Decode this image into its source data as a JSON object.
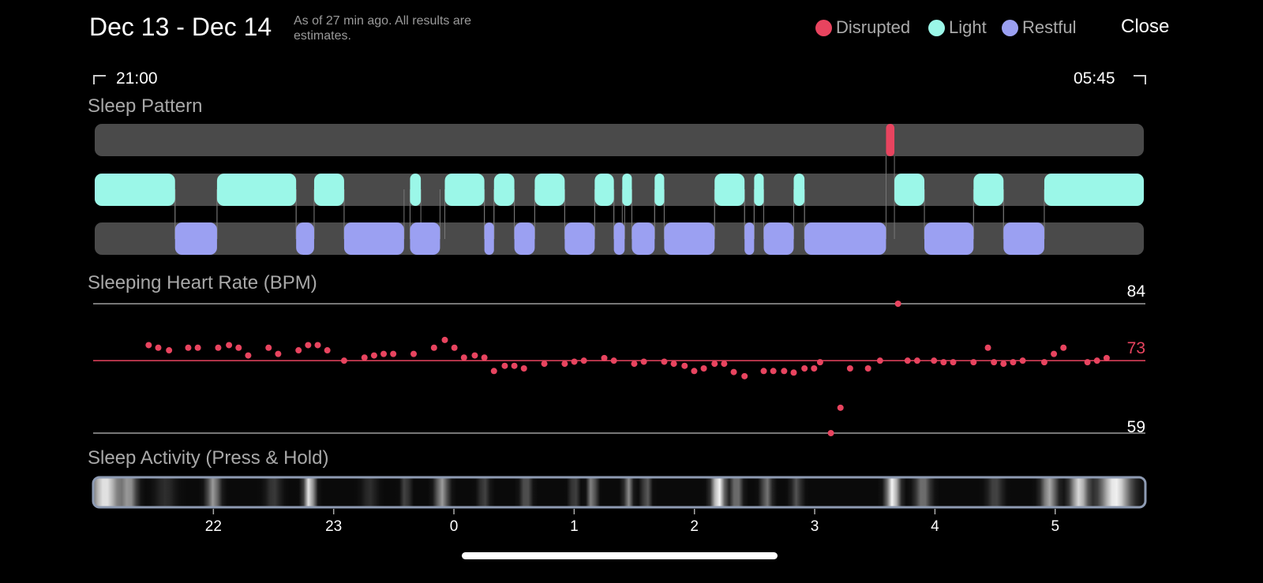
{
  "header": {
    "date_range": "Dec 13 - Dec 14",
    "note": "As of 27 min ago. All results are estimates.",
    "close_label": "Close"
  },
  "legend": [
    {
      "label": "Disrupted",
      "color": "#e8445f"
    },
    {
      "label": "Light",
      "color": "#9bf7e8"
    },
    {
      "label": "Restful",
      "color": "#9ba0f2"
    }
  ],
  "time_range": {
    "start": "21:00",
    "end": "05:45"
  },
  "sections": {
    "pattern_title": "Sleep Pattern",
    "hr_title": "Sleeping Heart Rate (BPM)",
    "activity_title": "Sleep Activity (Press & Hold)"
  },
  "sleep_pattern": {
    "start_hour": 21.0,
    "end_hour": 29.75,
    "disrupted": [
      [
        27.6,
        27.67
      ]
    ],
    "light": [
      [
        21.0,
        21.67
      ],
      [
        22.02,
        22.68
      ],
      [
        22.83,
        23.08
      ],
      [
        23.63,
        23.72
      ],
      [
        23.92,
        24.25
      ],
      [
        24.33,
        24.5
      ],
      [
        24.67,
        24.92
      ],
      [
        25.17,
        25.33
      ],
      [
        25.4,
        25.48
      ],
      [
        25.67,
        25.75
      ],
      [
        26.17,
        26.42
      ],
      [
        26.5,
        26.58
      ],
      [
        26.83,
        26.92
      ],
      [
        27.67,
        27.92
      ],
      [
        28.33,
        28.58
      ],
      [
        28.92,
        29.75
      ]
    ],
    "restful": [
      [
        21.67,
        22.02
      ],
      [
        22.68,
        22.83
      ],
      [
        23.08,
        23.58
      ],
      [
        23.63,
        23.88
      ],
      [
        24.25,
        24.33
      ],
      [
        24.5,
        24.67
      ],
      [
        24.92,
        25.17
      ],
      [
        25.33,
        25.42
      ],
      [
        25.48,
        25.67
      ],
      [
        25.75,
        26.17
      ],
      [
        26.42,
        26.5
      ],
      [
        26.58,
        26.83
      ],
      [
        26.92,
        27.6
      ],
      [
        27.92,
        28.33
      ],
      [
        28.58,
        28.92
      ]
    ]
  },
  "chart_data": {
    "type": "scatter",
    "title": "Sleeping Heart Rate (BPM)",
    "x_unit": "hour of night (21 = 21:00, 24 = 00:00)",
    "xlim": [
      21.0,
      29.75
    ],
    "ylim": [
      59,
      84
    ],
    "reference_lines": {
      "max": 84,
      "average": 73,
      "min": 59
    },
    "points": [
      [
        21.45,
        76
      ],
      [
        21.53,
        75.5
      ],
      [
        21.62,
        75
      ],
      [
        21.78,
        75.5
      ],
      [
        21.86,
        75.5
      ],
      [
        22.03,
        75.5
      ],
      [
        22.12,
        76
      ],
      [
        22.2,
        75.5
      ],
      [
        22.28,
        74
      ],
      [
        22.45,
        75.5
      ],
      [
        22.53,
        74.3
      ],
      [
        22.7,
        75
      ],
      [
        22.78,
        76
      ],
      [
        22.86,
        76
      ],
      [
        22.94,
        75
      ],
      [
        23.08,
        73
      ],
      [
        23.25,
        73.6
      ],
      [
        23.33,
        74
      ],
      [
        23.41,
        74.3
      ],
      [
        23.49,
        74.3
      ],
      [
        23.66,
        74.3
      ],
      [
        23.83,
        75.5
      ],
      [
        23.92,
        77
      ],
      [
        24.0,
        75.5
      ],
      [
        24.08,
        73.6
      ],
      [
        24.17,
        74
      ],
      [
        24.25,
        73.6
      ],
      [
        24.33,
        71
      ],
      [
        24.42,
        72
      ],
      [
        24.5,
        72
      ],
      [
        24.58,
        71.5
      ],
      [
        24.75,
        72.4
      ],
      [
        24.92,
        72.4
      ],
      [
        25.0,
        72.8
      ],
      [
        25.08,
        73
      ],
      [
        25.25,
        73.5
      ],
      [
        25.33,
        73
      ],
      [
        25.5,
        72.4
      ],
      [
        25.58,
        72.8
      ],
      [
        25.75,
        72.8
      ],
      [
        25.83,
        72.4
      ],
      [
        25.92,
        72
      ],
      [
        26.0,
        71
      ],
      [
        26.08,
        71.5
      ],
      [
        26.17,
        72.4
      ],
      [
        26.25,
        72.4
      ],
      [
        26.33,
        70.8
      ],
      [
        26.42,
        70
      ],
      [
        26.58,
        71
      ],
      [
        26.66,
        71
      ],
      [
        26.75,
        71
      ],
      [
        26.83,
        70.7
      ],
      [
        26.92,
        71.5
      ],
      [
        27.0,
        71.5
      ],
      [
        27.05,
        72.7
      ],
      [
        27.14,
        59
      ],
      [
        27.22,
        63.9
      ],
      [
        27.3,
        71.5
      ],
      [
        27.45,
        71.5
      ],
      [
        27.55,
        73
      ],
      [
        27.7,
        84
      ],
      [
        27.78,
        73
      ],
      [
        27.86,
        73
      ],
      [
        28.0,
        73
      ],
      [
        28.08,
        72.7
      ],
      [
        28.16,
        72.7
      ],
      [
        28.33,
        72.7
      ],
      [
        28.45,
        75.5
      ],
      [
        28.5,
        72.7
      ],
      [
        28.58,
        72.4
      ],
      [
        28.66,
        72.7
      ],
      [
        28.74,
        73
      ],
      [
        28.92,
        72.7
      ],
      [
        29.0,
        74.3
      ],
      [
        29.08,
        75.5
      ],
      [
        29.28,
        72.7
      ],
      [
        29.36,
        73
      ],
      [
        29.44,
        73.5
      ]
    ]
  },
  "activity": {
    "start_hour": 21.0,
    "end_hour": 29.75,
    "peaks": [
      [
        21.1,
        0.9,
        0.12
      ],
      [
        21.3,
        0.55,
        0.06
      ],
      [
        21.6,
        0.15,
        0.08
      ],
      [
        22.0,
        0.6,
        0.05
      ],
      [
        22.5,
        0.2,
        0.06
      ],
      [
        22.8,
        0.95,
        0.04
      ],
      [
        23.3,
        0.15,
        0.06
      ],
      [
        23.6,
        0.3,
        0.03
      ],
      [
        23.9,
        0.6,
        0.05
      ],
      [
        24.25,
        0.25,
        0.04
      ],
      [
        24.6,
        0.35,
        0.04
      ],
      [
        25.0,
        0.3,
        0.03
      ],
      [
        25.15,
        0.6,
        0.03
      ],
      [
        25.45,
        0.55,
        0.03
      ],
      [
        25.6,
        0.4,
        0.03
      ],
      [
        26.2,
        1.0,
        0.05
      ],
      [
        26.35,
        0.5,
        0.04
      ],
      [
        26.6,
        0.45,
        0.04
      ],
      [
        26.85,
        0.3,
        0.04
      ],
      [
        27.65,
        1.0,
        0.05
      ],
      [
        27.9,
        0.45,
        0.06
      ],
      [
        28.5,
        0.25,
        0.06
      ],
      [
        28.95,
        0.65,
        0.06
      ],
      [
        29.2,
        0.85,
        0.07
      ],
      [
        29.5,
        0.95,
        0.12
      ]
    ],
    "ticks": [
      "22",
      "23",
      "0",
      "1",
      "2",
      "3",
      "4",
      "5"
    ],
    "tick_hours": [
      22,
      23,
      24,
      25,
      26,
      27,
      28,
      29
    ]
  }
}
